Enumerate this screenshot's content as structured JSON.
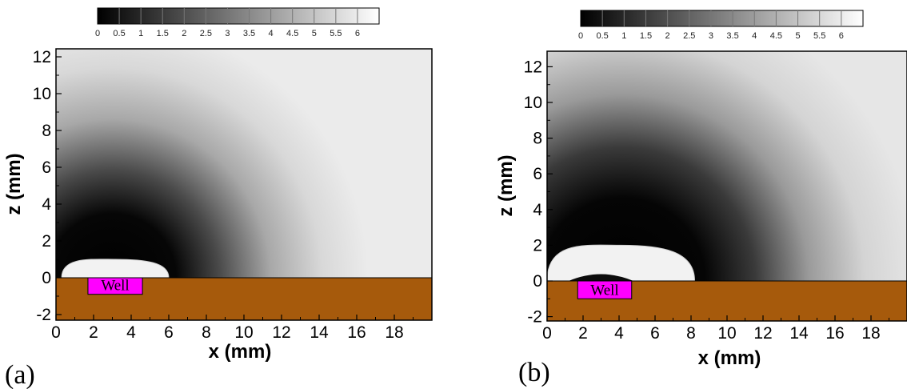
{
  "chart_data": [
    {
      "type": "heatmap",
      "panel_label": "(a)",
      "xlabel": "x (mm)",
      "ylabel": "z (mm)",
      "xlim": [
        0,
        20
      ],
      "ylim": [
        -2.5,
        12.5
      ],
      "x_ticks": [
        "0",
        "2",
        "4",
        "6",
        "8",
        "10",
        "12",
        "14",
        "16",
        "18"
      ],
      "y_ticks": [
        "-2",
        "0",
        "2",
        "4",
        "6",
        "8",
        "10",
        "12"
      ],
      "colorbar": {
        "range": [
          0,
          6.5
        ],
        "colormap": "grayscale (black to white)",
        "tick_labels": [
          "0",
          "0.5",
          "1",
          "1.5",
          "2",
          "2.5",
          "3",
          "3.5",
          "4",
          "4.5",
          "5",
          "5.5",
          "6"
        ]
      },
      "substrate": {
        "z_range": [
          -2.5,
          0
        ],
        "color": "#a65a0c"
      },
      "well": {
        "label": "Well",
        "x_range": [
          1.7,
          4.6
        ],
        "z_range": [
          -0.9,
          0
        ],
        "color": "#ff00ff"
      },
      "saturated_dome": {
        "x_range": [
          0.3,
          6.0
        ],
        "peak_z": 1.0,
        "value": 6.5
      },
      "dark_halo_outer_radius_mm": 11.5,
      "background_value": 6.2
    },
    {
      "type": "heatmap",
      "panel_label": "(b)",
      "xlabel": "x (mm)",
      "ylabel": "z (mm)",
      "xlim": [
        0,
        20
      ],
      "ylim": [
        -2.5,
        12.5
      ],
      "x_ticks": [
        "0",
        "2",
        "4",
        "6",
        "8",
        "10",
        "12",
        "14",
        "16",
        "18"
      ],
      "y_ticks": [
        "-2",
        "0",
        "2",
        "4",
        "6",
        "8",
        "10",
        "12"
      ],
      "colorbar": {
        "range": [
          0,
          6.5
        ],
        "colormap": "grayscale (black to white)",
        "tick_labels": [
          "0",
          "0.5",
          "1",
          "1.5",
          "2",
          "2.5",
          "3",
          "3.5",
          "4",
          "4.5",
          "5",
          "5.5",
          "6"
        ]
      },
      "substrate": {
        "z_range": [
          -2.5,
          0
        ],
        "color": "#a65a0c"
      },
      "well": {
        "label": "Well",
        "x_range": [
          1.7,
          4.7
        ],
        "z_range": [
          -1.0,
          0
        ],
        "color": "#ff00ff"
      },
      "saturated_dome": {
        "x_range": [
          0.0,
          8.2
        ],
        "peak_z": 2.0,
        "value": 6.5
      },
      "inner_dark_lens": {
        "x_range": [
          1.2,
          4.8
        ],
        "peak_z": 0.4
      },
      "dark_halo_outer_radius_mm": 13.5,
      "background_value": 6.0
    }
  ]
}
